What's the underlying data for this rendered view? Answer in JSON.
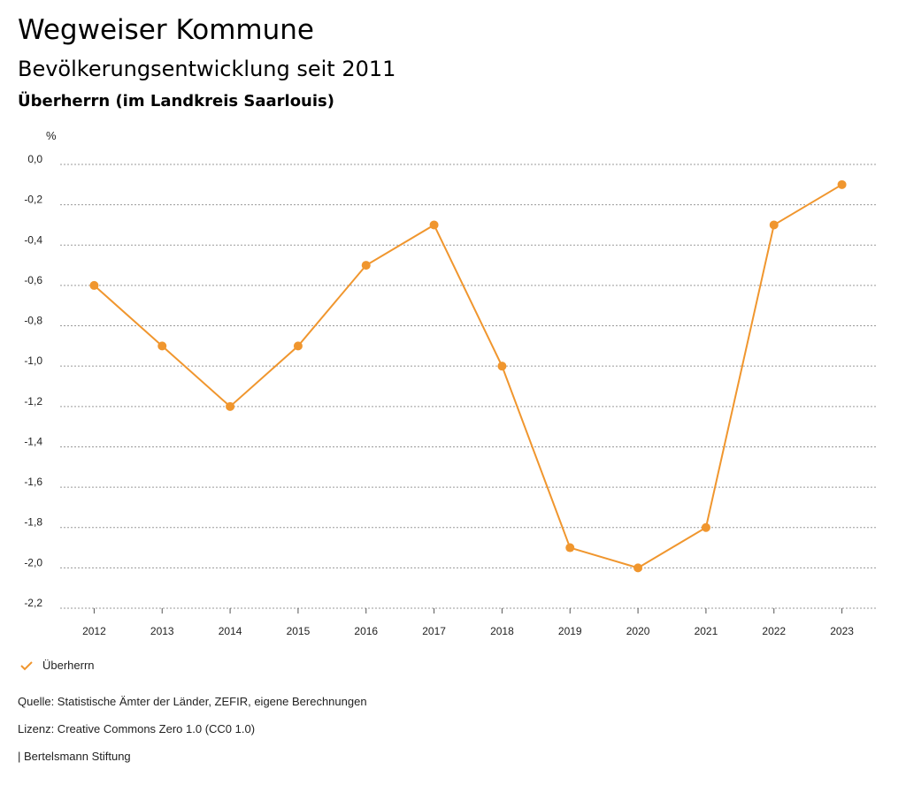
{
  "header": {
    "title": "Wegweiser Kommune",
    "subtitle": "Bevölkerungsentwicklung seit 2011",
    "region": "Überherrn (im Landkreis Saarlouis)"
  },
  "chart_data": {
    "type": "line",
    "unit_label": "%",
    "categories": [
      "2012",
      "2013",
      "2014",
      "2015",
      "2016",
      "2017",
      "2018",
      "2019",
      "2020",
      "2021",
      "2022",
      "2023"
    ],
    "series": [
      {
        "name": "Überherrn",
        "color": "#f0962e",
        "values": [
          -0.6,
          -0.9,
          -1.2,
          -0.9,
          -0.5,
          -0.3,
          -1.0,
          -1.9,
          -2.0,
          -1.8,
          -0.3,
          -0.1
        ]
      }
    ],
    "ylim": [
      -2.2,
      0.0
    ],
    "yticks": [
      0.0,
      -0.2,
      -0.4,
      -0.6,
      -0.8,
      -1.0,
      -1.2,
      -1.4,
      -1.6,
      -1.8,
      -2.0,
      -2.2
    ],
    "ytick_labels": [
      "0,0",
      "-0,2",
      "-0,4",
      "-0,6",
      "-0,8",
      "-1,0",
      "-1,2",
      "-1,4",
      "-1,6",
      "-1,8",
      "-2,0",
      "-2,2"
    ],
    "grid": true,
    "legend_position": "bottom-left"
  },
  "footer": {
    "source": "Quelle: Statistische Ämter der Länder, ZEFIR, eigene Berechnungen",
    "license": "Lizenz: Creative Commons Zero 1.0 (CC0 1.0)",
    "publisher": "| Bertelsmann Stiftung"
  }
}
